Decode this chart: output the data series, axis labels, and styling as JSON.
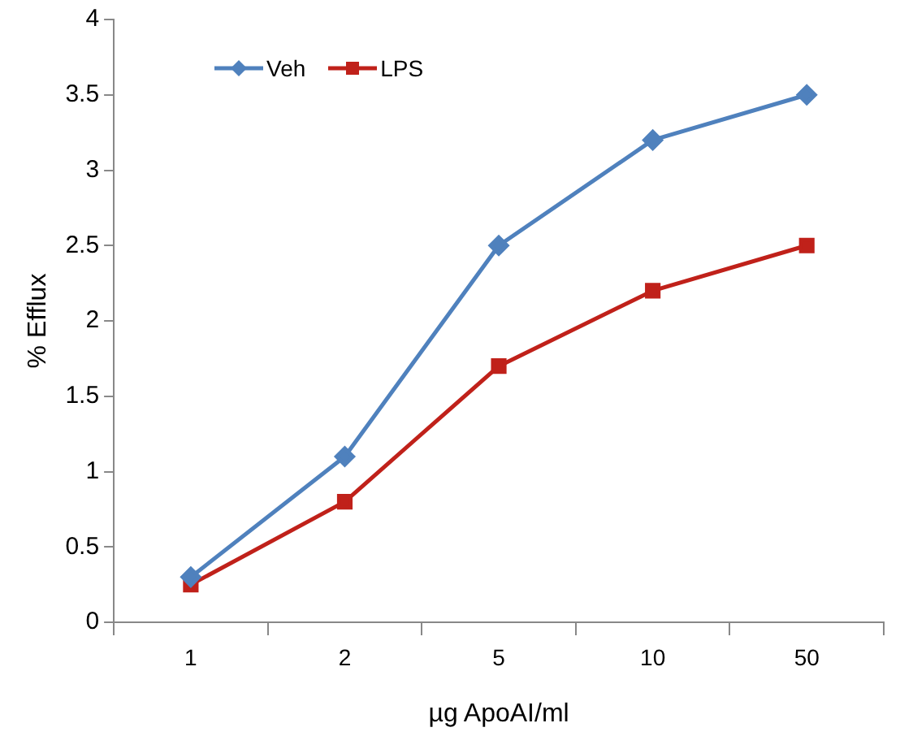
{
  "chart_data": {
    "type": "line",
    "xlabel": "µg ApoAI/ml",
    "ylabel": "% Efflux",
    "categories": [
      "1",
      "2",
      "5",
      "10",
      "50"
    ],
    "series": [
      {
        "name": "Veh",
        "color": "#4f81bd",
        "marker": "diamond",
        "values": [
          0.3,
          1.1,
          2.5,
          3.2,
          3.5
        ]
      },
      {
        "name": "LPS",
        "color": "#c0211a",
        "marker": "square",
        "values": [
          0.25,
          0.8,
          1.7,
          2.2,
          2.5
        ]
      }
    ],
    "ylim": [
      0,
      4
    ],
    "yticks": [
      0,
      0.5,
      1,
      1.5,
      2,
      2.5,
      3,
      3.5,
      4
    ],
    "grid": false,
    "legend": "top left",
    "line_style": "solid"
  }
}
